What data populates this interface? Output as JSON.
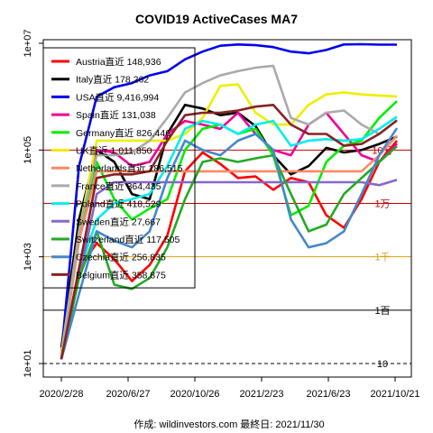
{
  "chart_data": {
    "type": "line",
    "title": "COVID19 ActiveCases MA7",
    "caption": "作成: wildinvestors.com 最終日: 2021/11/30",
    "y_scale": "log10",
    "ylim": [
      10,
      10000000
    ],
    "y_ticks": [
      {
        "value": 10,
        "label": "1e+01"
      },
      {
        "value": 1000,
        "label": "1e+03"
      },
      {
        "value": 100000,
        "label": "1e+05"
      },
      {
        "value": 10000000,
        "label": "1e+07"
      }
    ],
    "x_ticks": [
      "2020/2/28",
      "2020/6/27",
      "2020/10/26",
      "2021/2/23",
      "2021/6/23",
      "2021/10/21"
    ],
    "reference_lines": [
      {
        "value": 100000,
        "label": "10万",
        "color": "#cc0000"
      },
      {
        "value": 10000,
        "label": "1万",
        "color": "#cc0000"
      },
      {
        "value": 1000,
        "label": "1千",
        "color": "#d4a017"
      },
      {
        "value": 100,
        "label": "1百",
        "color": "#000000"
      },
      {
        "value": 10,
        "label": "10",
        "color": "#000000"
      }
    ],
    "series": [
      {
        "name": "Austria",
        "suffix": "直近",
        "latest": "148,936",
        "color": "#ff0000",
        "values": [
          12,
          600,
          1800,
          900,
          350,
          700,
          2500,
          40000,
          90000,
          55000,
          30000,
          32000,
          18000,
          30000,
          25000,
          6000,
          3500,
          12000,
          60000,
          148936
        ]
      },
      {
        "name": "Italy",
        "suffix": "直近",
        "latest": "178,262",
        "color": "#000000",
        "values": [
          20,
          5000,
          100000,
          60000,
          15000,
          12000,
          200000,
          700000,
          600000,
          450000,
          500000,
          280000,
          80000,
          35000,
          50000,
          110000,
          90000,
          100000,
          130000,
          178262
        ]
      },
      {
        "name": "USA",
        "suffix": "直近",
        "latest": "9,416,994",
        "color": "#0000ee",
        "values": [
          15,
          50000,
          1000000,
          1500000,
          1800000,
          2500000,
          3000000,
          5000000,
          7000000,
          9000000,
          9500000,
          9200000,
          8500000,
          7000000,
          6500000,
          7500000,
          9500000,
          9600000,
          9450000,
          9416994
        ]
      },
      {
        "name": "Spain",
        "suffix": "直近",
        "latest": "131,038",
        "color": "#ee0099",
        "values": [
          12,
          3000,
          100000,
          90000,
          50000,
          60000,
          200000,
          350000,
          300000,
          250000,
          500000,
          200000,
          100000,
          80000,
          300000,
          500000,
          200000,
          80000,
          60000,
          131038
        ]
      },
      {
        "name": "Germany",
        "suffix": "直近",
        "latest": "826,446",
        "color": "#00ee00",
        "values": [
          15,
          2000,
          60000,
          12000,
          5000,
          8000,
          12000,
          100000,
          250000,
          300000,
          200000,
          250000,
          80000,
          6000,
          9000,
          60000,
          120000,
          150000,
          400000,
          826446
        ]
      },
      {
        "name": "UK",
        "suffix": "直近",
        "latest": "1,011,850",
        "color": "#eeee00",
        "values": [
          15,
          3000,
          150000,
          150000,
          150000,
          150000,
          150000,
          200000,
          400000,
          1600000,
          1700000,
          500000,
          300000,
          300000,
          700000,
          1100000,
          1200000,
          1100000,
          1050000,
          1011850
        ]
      },
      {
        "name": "Netherlands",
        "suffix": "直近",
        "latest": "186,515",
        "color": "#ff8866",
        "values": [
          12,
          2000,
          40000,
          40000,
          40000,
          40000,
          40000,
          40000,
          40000,
          40000,
          40000,
          40000,
          40000,
          40000,
          40000,
          40000,
          40000,
          40000,
          80000,
          186515
        ]
      },
      {
        "name": "France",
        "suffix": "直近",
        "latest": "364,435",
        "color": "#aaaaaa",
        "values": [
          12,
          3000,
          80000,
          80000,
          90000,
          150000,
          400000,
          1200000,
          1800000,
          2500000,
          3000000,
          3500000,
          3800000,
          400000,
          300000,
          500000,
          550000,
          300000,
          200000,
          364435
        ]
      },
      {
        "name": "Poland",
        "suffix": "直近",
        "latest": "418,529",
        "color": "#00eeee",
        "values": [
          12,
          500,
          5000,
          10000,
          12000,
          15000,
          50000,
          250000,
          350000,
          300000,
          200000,
          300000,
          350000,
          120000,
          150000,
          160000,
          150000,
          160000,
          250000,
          418529
        ]
      },
      {
        "name": "Sweden",
        "suffix": "直近",
        "latest": "27,667",
        "color": "#8866cc",
        "values": [
          12,
          400,
          15000,
          25000,
          25000,
          25000,
          25000,
          25000,
          25000,
          25000,
          25000,
          25000,
          25000,
          25000,
          25000,
          25000,
          25000,
          25000,
          22000,
          27667
        ]
      },
      {
        "name": "Switzerland",
        "suffix": "直近",
        "latest": "117,505",
        "color": "#22aa22",
        "values": [
          12,
          400,
          3000,
          300,
          250,
          400,
          1500,
          12000,
          60000,
          70000,
          60000,
          70000,
          80000,
          15000,
          3000,
          4000,
          15000,
          30000,
          60000,
          117505
        ]
      },
      {
        "name": "Czechia",
        "suffix": "直近",
        "latest": "256,835",
        "color": "#4488cc",
        "values": [
          12,
          200,
          3000,
          2000,
          1500,
          3000,
          30000,
          150000,
          100000,
          80000,
          150000,
          200000,
          100000,
          5000,
          1500,
          1800,
          3000,
          15000,
          80000,
          256835
        ]
      },
      {
        "name": "Belgium",
        "suffix": "直近",
        "latest": "358,875",
        "color": "#882222",
        "values": [
          12,
          600,
          30000,
          35000,
          35000,
          40000,
          150000,
          450000,
          500000,
          500000,
          550000,
          650000,
          700000,
          300000,
          200000,
          200000,
          120000,
          130000,
          200000,
          358875
        ]
      }
    ]
  }
}
